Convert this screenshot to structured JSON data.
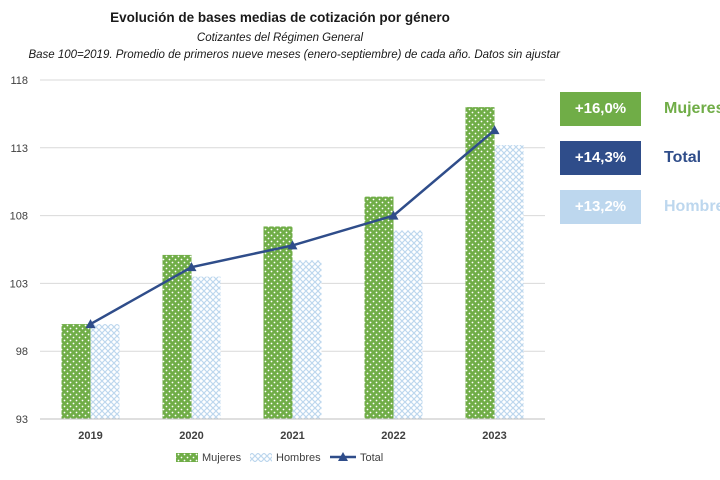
{
  "chart_data": {
    "type": "bar",
    "title": "Evolución de bases medias de cotización por género",
    "subtitle": "Cotizantes del Régimen General",
    "note": "Base 100=2019. Promedio de primeros nueve meses (enero-septiembre) de cada año. Datos sin ajustar",
    "categories": [
      "2019",
      "2020",
      "2021",
      "2022",
      "2023"
    ],
    "series": [
      {
        "name": "Mujeres",
        "kind": "bar",
        "color": "#70ad47",
        "values": [
          100.0,
          105.1,
          107.2,
          109.4,
          116.0
        ]
      },
      {
        "name": "Hombres",
        "kind": "bar",
        "color": "#bdd7ee",
        "values": [
          100.0,
          103.5,
          104.7,
          106.9,
          113.2
        ]
      },
      {
        "name": "Total",
        "kind": "line",
        "color": "#2f4d8a",
        "values": [
          100.0,
          104.2,
          105.8,
          108.0,
          114.3
        ]
      }
    ],
    "ylim": [
      93,
      118
    ],
    "yticks": [
      "93",
      "98",
      "103",
      "108",
      "113",
      "118"
    ],
    "grid": true,
    "legend": "bottom"
  },
  "badges": [
    {
      "value": "+16,0%",
      "label": "Mujeres",
      "box_color": "#70ad47",
      "label_color": "#70ad47"
    },
    {
      "value": "+14,3%",
      "label": "Total",
      "box_color": "#2f4d8a",
      "label_color": "#2f4d8a"
    },
    {
      "value": "+13,2%",
      "label": "Hombres",
      "box_color": "#bdd7ee",
      "label_color": "#bdd7ee"
    }
  ]
}
